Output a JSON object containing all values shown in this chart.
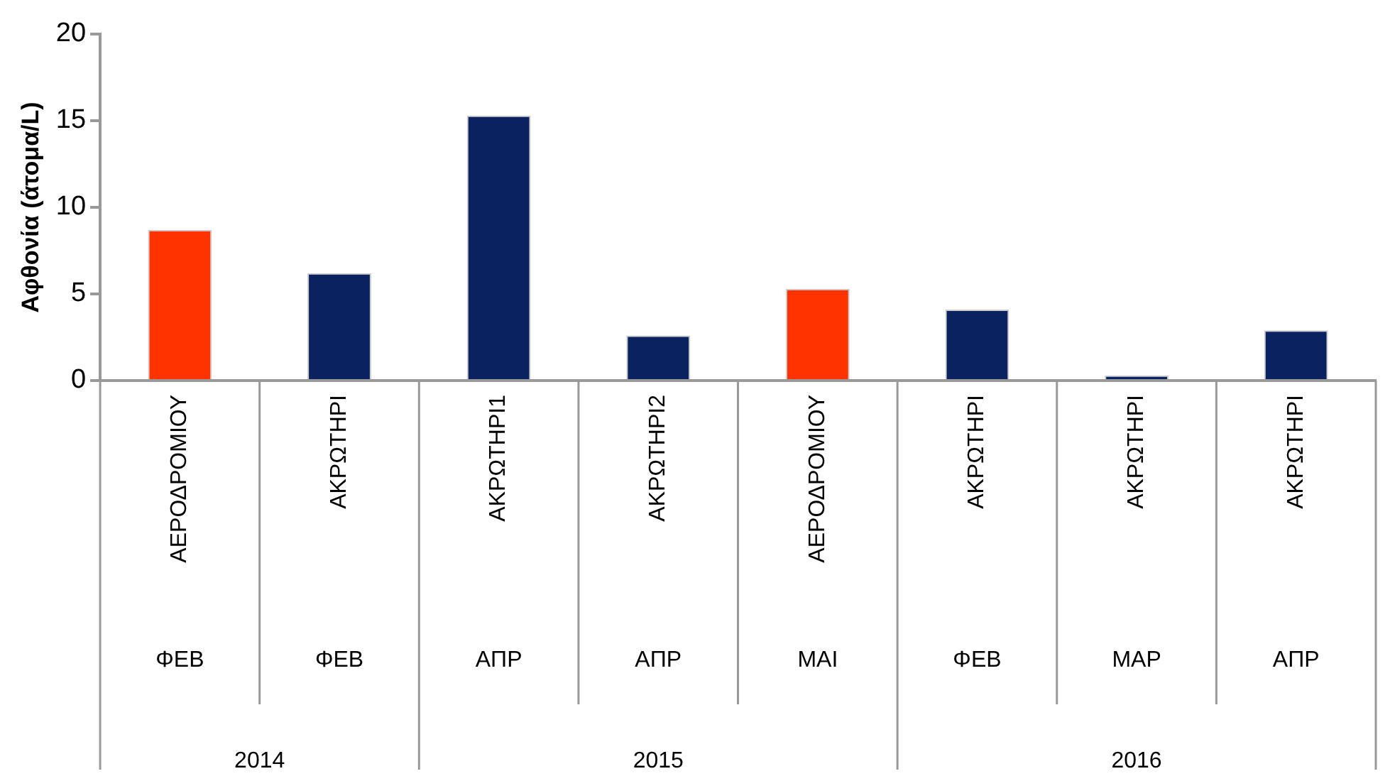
{
  "chart_data": {
    "type": "bar",
    "ylabel": "Αφθονία (άτομα/L)",
    "categories": [
      "ΑΕΡΟΔΡΟΜΙΟΥ",
      "ΑΚΡΩΤΗΡΙ",
      "ΑΚΡΩΤΗΡΙ1",
      "ΑΚΡΩΤΗΡΙ2",
      "ΑΕΡΟΔΡΟΜΙΟΥ",
      "ΑΚΡΩΤΗΡΙ",
      "ΑΚΡΩΤΗΡΙ",
      "ΑΚΡΩΤΗΡΙ"
    ],
    "values": [
      8.7,
      6.2,
      15.3,
      2.6,
      5.3,
      4.1,
      0.3,
      2.9
    ],
    "colors": [
      "#ff3300",
      "#0a2260",
      "#0a2260",
      "#0a2260",
      "#ff3300",
      "#0a2260",
      "#0a2260",
      "#0a2260"
    ],
    "ylim": [
      0,
      20
    ],
    "yticks": [
      0,
      5,
      10,
      15,
      20
    ],
    "annotations": [
      "ΦΕΒ",
      "ΦΕΒ",
      "ΑΠΡ",
      "ΑΠΡ",
      "ΜΑΙ",
      "ΦΕΒ",
      "ΜΑΡ",
      "ΑΠΡ",
      "2014",
      "2015",
      "2016"
    ]
  }
}
